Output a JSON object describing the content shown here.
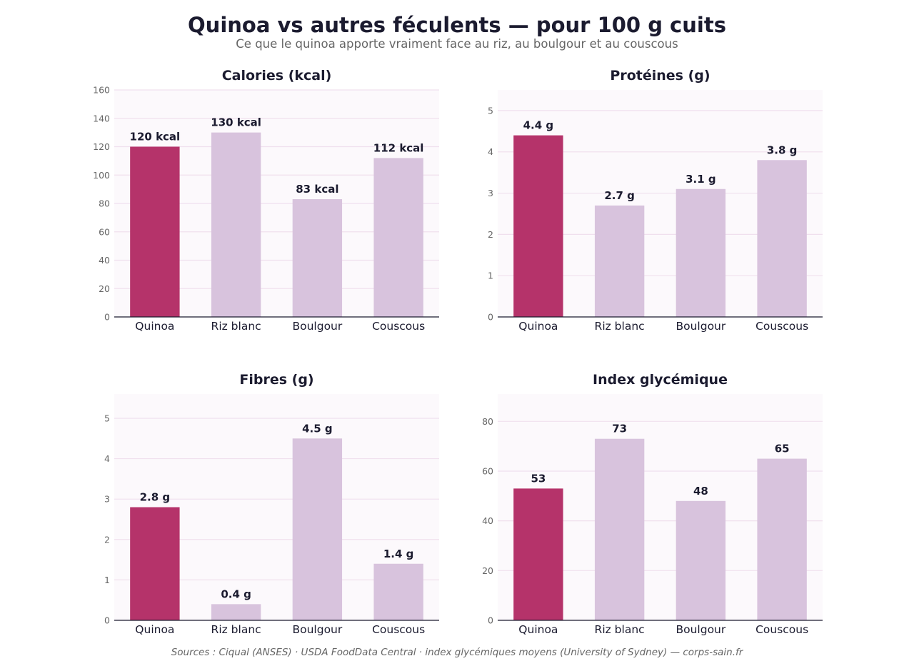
{
  "header": {
    "title": "Quinoa vs autres féculents — pour 100 g cuits",
    "subtitle": "Ce que le quinoa apporte vraiment face au riz, au boulgour et au couscous"
  },
  "footer": {
    "source": "Sources : Ciqual (ANSES) · USDA FoodData Central · index glycémiques moyens (University of Sydney)  —  corps-sain.fr"
  },
  "colors": {
    "highlight": "#b5336a",
    "other": "#d8c3dd",
    "plot_background": "#fcf9fc",
    "gridline": "#f0e0ee",
    "axis": "#1b1b2f"
  },
  "chart_data": [
    {
      "type": "bar",
      "title": "Calories (kcal)",
      "categories": [
        "Quinoa",
        "Riz blanc",
        "Boulgour",
        "Couscous"
      ],
      "values": [
        120,
        130,
        83,
        112
      ],
      "data_labels": [
        "120 kcal",
        "130 kcal",
        "83 kcal",
        "112 kcal"
      ],
      "highlight_index": 0,
      "ylim": [
        0,
        160
      ],
      "yticks": [
        0,
        20,
        40,
        60,
        80,
        100,
        120,
        140,
        160
      ],
      "grid": true
    },
    {
      "type": "bar",
      "title": "Protéines (g)",
      "categories": [
        "Quinoa",
        "Riz blanc",
        "Boulgour",
        "Couscous"
      ],
      "values": [
        4.4,
        2.7,
        3.1,
        3.8
      ],
      "data_labels": [
        "4.4 g",
        "2.7 g",
        "3.1 g",
        "3.8 g"
      ],
      "highlight_index": 0,
      "ylim": [
        0,
        5.5
      ],
      "yticks": [
        0,
        1,
        2,
        3,
        4,
        5
      ],
      "grid": true
    },
    {
      "type": "bar",
      "title": "Fibres (g)",
      "categories": [
        "Quinoa",
        "Riz blanc",
        "Boulgour",
        "Couscous"
      ],
      "values": [
        2.8,
        0.4,
        4.5,
        1.4
      ],
      "data_labels": [
        "2.8 g",
        "0.4 g",
        "4.5 g",
        "1.4 g"
      ],
      "highlight_index": 0,
      "ylim": [
        0,
        5.6
      ],
      "yticks": [
        0,
        1,
        2,
        3,
        4,
        5
      ],
      "grid": true
    },
    {
      "type": "bar",
      "title": "Index glycémique",
      "categories": [
        "Quinoa",
        "Riz blanc",
        "Boulgour",
        "Couscous"
      ],
      "values": [
        53,
        73,
        48,
        65
      ],
      "data_labels": [
        "53",
        "73",
        "48",
        "65"
      ],
      "highlight_index": 0,
      "ylim": [
        0,
        91
      ],
      "yticks": [
        0,
        20,
        40,
        60,
        80
      ],
      "grid": true
    }
  ]
}
